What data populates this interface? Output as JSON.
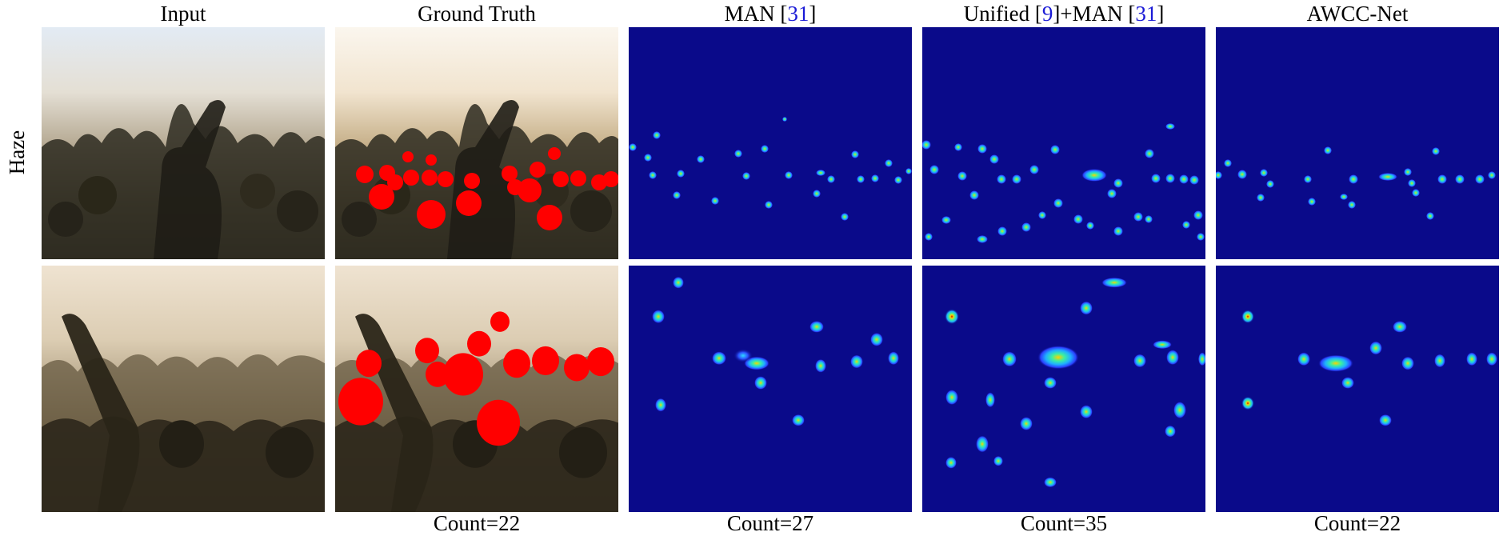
{
  "columns": {
    "input": "Input",
    "ground_truth": "Ground Truth",
    "man": {
      "name": "MAN",
      "ref": "31"
    },
    "unified_man": {
      "name1": "Unified",
      "ref1": "9",
      "mid": "+MAN",
      "ref2": "31"
    },
    "awcc": "AWCC-Net"
  },
  "row_label": "Haze",
  "counts": {
    "ground_truth": "Count=22",
    "man": "Count=27",
    "unified_man": "Count=35",
    "awcc": "Count=22"
  },
  "colors": {
    "density_background": "#0a0a8a",
    "ground_truth_marker": "#ff0000",
    "citation": "#1a1ad6"
  }
}
